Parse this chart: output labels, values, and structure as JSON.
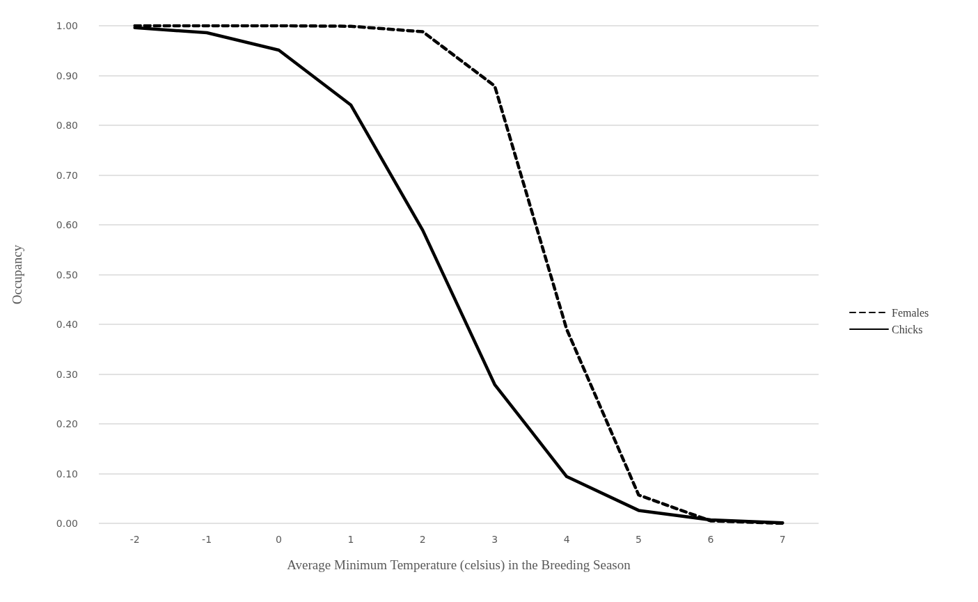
{
  "chart_data": {
    "type": "line",
    "xlabel": "Average Minimum Temperature (celsius) in the Breeding Season",
    "ylabel": "Occupancy",
    "categories": [
      "-2",
      "-1",
      "0",
      "1",
      "2",
      "3",
      "4",
      "5",
      "6",
      "7"
    ],
    "series": [
      {
        "name": "Females",
        "color": "#000000",
        "line_style": "dashed",
        "values": [
          1.0,
          1.0,
          1.0,
          0.999,
          0.988,
          0.879,
          0.39,
          0.057,
          0.005,
          0.0
        ]
      },
      {
        "name": "Chicks",
        "color": "#000000",
        "line_style": "solid",
        "values": [
          0.996,
          0.986,
          0.951,
          0.841,
          0.589,
          0.279,
          0.094,
          0.026,
          0.007,
          0.001
        ]
      }
    ],
    "ylim": [
      0,
      1
    ],
    "yticks": [
      {
        "value": 0,
        "label": "0.00"
      },
      {
        "value": 0.1,
        "label": "0.10"
      },
      {
        "value": 0.2,
        "label": "0.20"
      },
      {
        "value": 0.3,
        "label": "0.30"
      },
      {
        "value": 0.4,
        "label": "0.40"
      },
      {
        "value": 0.5,
        "label": "0.50"
      },
      {
        "value": 0.6,
        "label": "0.60"
      },
      {
        "value": 0.7,
        "label": "0.70"
      },
      {
        "value": 0.8,
        "label": "0.80"
      },
      {
        "value": 0.9,
        "label": "0.90"
      },
      {
        "value": 1,
        "label": "1.00"
      }
    ],
    "grid": "y",
    "legend": "right",
    "marker": "none"
  }
}
